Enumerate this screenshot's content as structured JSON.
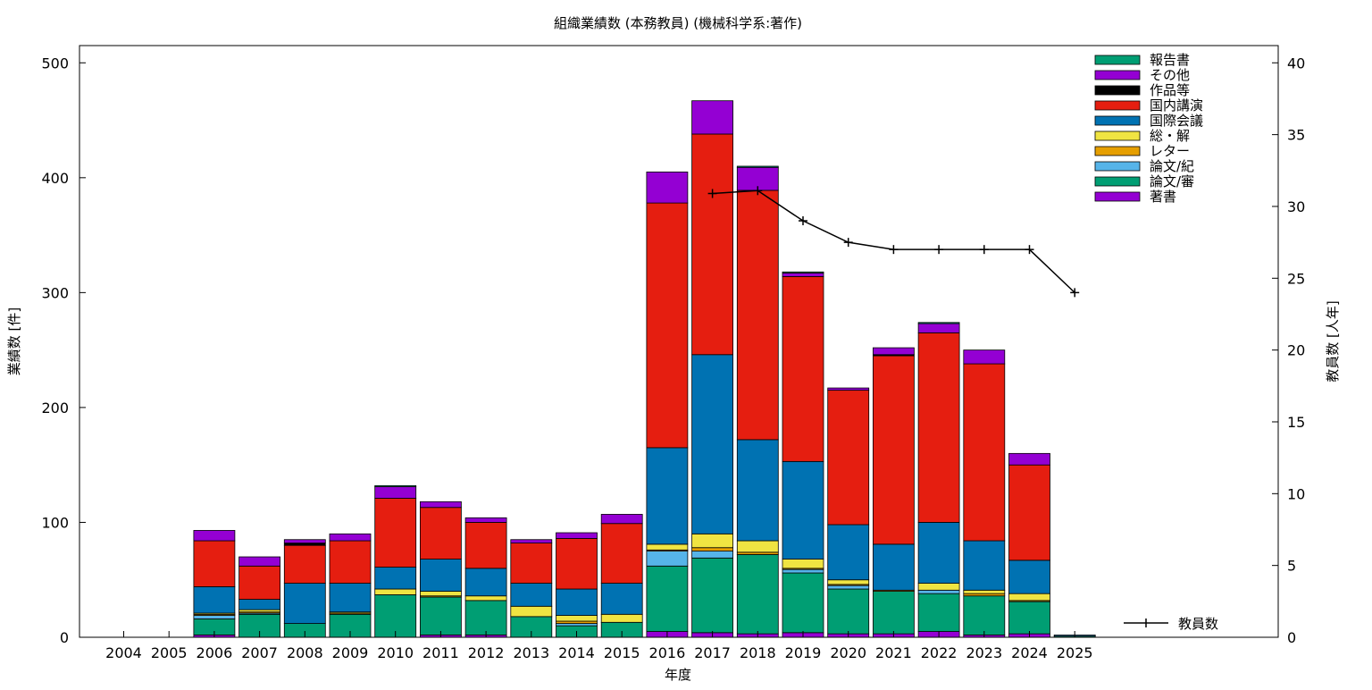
{
  "chart_data": {
    "type": "bar",
    "stacked": true,
    "title": "組織業績数 (本務教員) (機械科学系:著作)",
    "xlabel": "年度",
    "ylabel": "業績数 [件]",
    "y2label": "教員数 [人年]",
    "ylim": [
      0,
      515
    ],
    "y2lim": [
      0,
      41.2
    ],
    "yticks": [
      0,
      100,
      200,
      300,
      400,
      500
    ],
    "y2ticks": [
      0,
      5,
      10,
      15,
      20,
      25,
      30,
      35,
      40
    ],
    "categories": [
      "2004",
      "2005",
      "2006",
      "2007",
      "2008",
      "2009",
      "2010",
      "2011",
      "2012",
      "2013",
      "2014",
      "2015",
      "2016",
      "2017",
      "2018",
      "2019",
      "2020",
      "2021",
      "2022",
      "2023",
      "2024",
      "2025"
    ],
    "legend_position": "top-right",
    "series": [
      {
        "name": "著書",
        "color": "#9400d3",
        "values": [
          0,
          0,
          2,
          0,
          0,
          0,
          0,
          2,
          2,
          0,
          0,
          0,
          5,
          4,
          3,
          4,
          3,
          3,
          5,
          2,
          3,
          0
        ]
      },
      {
        "name": "論文/審",
        "color": "#009e73",
        "values": [
          0,
          0,
          14,
          20,
          12,
          20,
          37,
          33,
          30,
          18,
          10,
          13,
          57,
          65,
          69,
          52,
          39,
          37,
          33,
          34,
          28,
          1
        ]
      },
      {
        "name": "論文/紀",
        "color": "#56b4e9",
        "values": [
          0,
          0,
          3,
          1,
          0,
          0,
          0,
          0,
          0,
          0,
          2,
          0,
          13,
          6,
          0,
          3,
          3,
          0,
          3,
          0,
          0,
          1
        ]
      },
      {
        "name": "レター",
        "color": "#e69f00",
        "values": [
          0,
          0,
          1,
          1,
          0,
          1,
          0,
          1,
          0,
          0,
          2,
          0,
          1,
          3,
          2,
          1,
          1,
          1,
          0,
          2,
          1,
          0
        ]
      },
      {
        "name": "総・解",
        "color": "#f0e442",
        "values": [
          0,
          0,
          1,
          2,
          0,
          1,
          5,
          4,
          4,
          9,
          5,
          7,
          5,
          12,
          10,
          8,
          4,
          0,
          6,
          3,
          6,
          0
        ]
      },
      {
        "name": "国際会議",
        "color": "#0072b2",
        "values": [
          0,
          0,
          23,
          9,
          35,
          25,
          19,
          28,
          24,
          20,
          23,
          27,
          84,
          156,
          88,
          85,
          48,
          40,
          53,
          43,
          29,
          0
        ]
      },
      {
        "name": "国内講演",
        "color": "#e51e10",
        "values": [
          0,
          0,
          40,
          29,
          33,
          37,
          60,
          45,
          40,
          35,
          44,
          52,
          213,
          192,
          217,
          161,
          117,
          164,
          165,
          154,
          83,
          0
        ]
      },
      {
        "name": "作品等",
        "color": "#000000",
        "values": [
          0,
          0,
          0,
          0,
          2,
          0,
          0,
          0,
          0,
          0,
          0,
          0,
          0,
          0,
          0,
          0,
          0,
          1,
          0,
          0,
          0,
          0
        ]
      },
      {
        "name": "その他",
        "color": "#9400d3",
        "values": [
          0,
          0,
          9,
          8,
          3,
          6,
          10,
          5,
          4,
          3,
          5,
          8,
          27,
          29,
          20,
          3,
          2,
          6,
          8,
          12,
          10,
          0
        ]
      },
      {
        "name": "報告書",
        "color": "#009e73",
        "values": [
          0,
          0,
          0,
          0,
          0,
          0,
          1,
          0,
          0,
          0,
          0,
          0,
          0,
          0,
          1,
          1,
          0,
          0,
          1,
          0,
          0,
          0
        ]
      }
    ],
    "line_series": {
      "name": "教員数",
      "color": "#000000",
      "axis": "y2",
      "categories": [
        "2017",
        "2018",
        "2019",
        "2020",
        "2021",
        "2022",
        "2023",
        "2024",
        "2025"
      ],
      "values": [
        30.9,
        31.1,
        29.0,
        27.5,
        27.0,
        27.0,
        27.0,
        27.0,
        24.0
      ]
    }
  }
}
